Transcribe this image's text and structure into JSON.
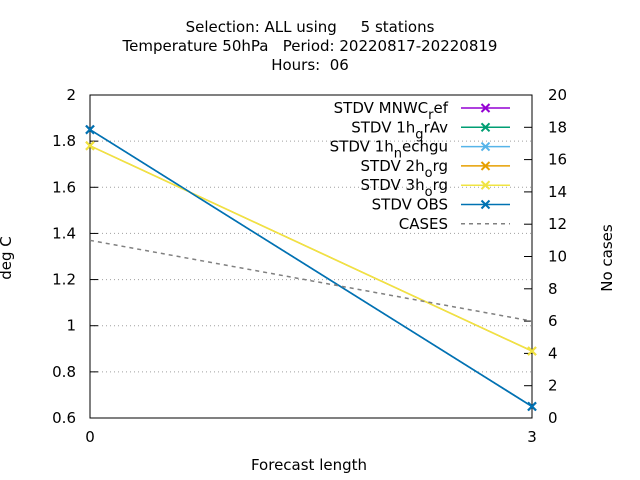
{
  "title": {
    "line1": "Selection: ALL using     5 stations",
    "line2": "Temperature 50hPa   Period: 20220817-20220819",
    "line3": "Hours:  06"
  },
  "chart_data": {
    "type": "line",
    "x": [
      0,
      3
    ],
    "xlabel": "Forecast length",
    "ylabel": "deg C",
    "y2label": "No cases",
    "xlim": [
      0,
      3
    ],
    "ylim": [
      0.6,
      2
    ],
    "y2lim": [
      0,
      20
    ],
    "xticks": [
      "0",
      "3"
    ],
    "yticks": [
      "0.6",
      "0.8",
      "1",
      "1.2",
      "1.4",
      "1.6",
      "1.8",
      "2"
    ],
    "y2ticks": [
      "0",
      "2",
      "4",
      "6",
      "8",
      "10",
      "12",
      "14",
      "16",
      "18",
      "20"
    ],
    "grid": true,
    "legend_position": "top-right",
    "series": [
      {
        "name": "STDV MNWC_ref",
        "legend_main": "STDV MNWC",
        "legend_sub": "r",
        "legend_tail": "ef",
        "color": "#9400d3",
        "values": [
          1.85,
          0.65
        ],
        "marker": "x",
        "axis": "y"
      },
      {
        "name": "STDV 1h_grAv",
        "legend_main": "STDV 1h",
        "legend_sub": "g",
        "legend_tail": "rAv",
        "color": "#009e73",
        "values": [
          1.85,
          0.65
        ],
        "marker": "x",
        "axis": "y"
      },
      {
        "name": "STDV 1h_nechgu",
        "legend_main": "STDV 1h",
        "legend_sub": "n",
        "legend_tail": "echgu",
        "color": "#56b4e9",
        "values": [
          1.85,
          0.65
        ],
        "marker": "x",
        "axis": "y"
      },
      {
        "name": "STDV 2h_org",
        "legend_main": "STDV 2h",
        "legend_sub": "o",
        "legend_tail": "rg",
        "color": "#e69f00",
        "values": [
          1.78,
          0.89
        ],
        "marker": "x",
        "axis": "y"
      },
      {
        "name": "STDV 3h_org",
        "legend_main": "STDV 3h",
        "legend_sub": "o",
        "legend_tail": "rg",
        "color": "#f0e442",
        "values": [
          1.78,
          0.89
        ],
        "marker": "x",
        "axis": "y"
      },
      {
        "name": "STDV OBS",
        "legend_main": "STDV OBS",
        "legend_sub": "",
        "legend_tail": "",
        "color": "#0072b2",
        "values": [
          1.85,
          0.65
        ],
        "marker": "x",
        "axis": "y"
      },
      {
        "name": "CASES",
        "legend_main": "CASES",
        "legend_sub": "",
        "legend_tail": "",
        "color": "#808080",
        "values": [
          11,
          6
        ],
        "marker": "none",
        "dashed": true,
        "axis": "y2"
      }
    ]
  }
}
